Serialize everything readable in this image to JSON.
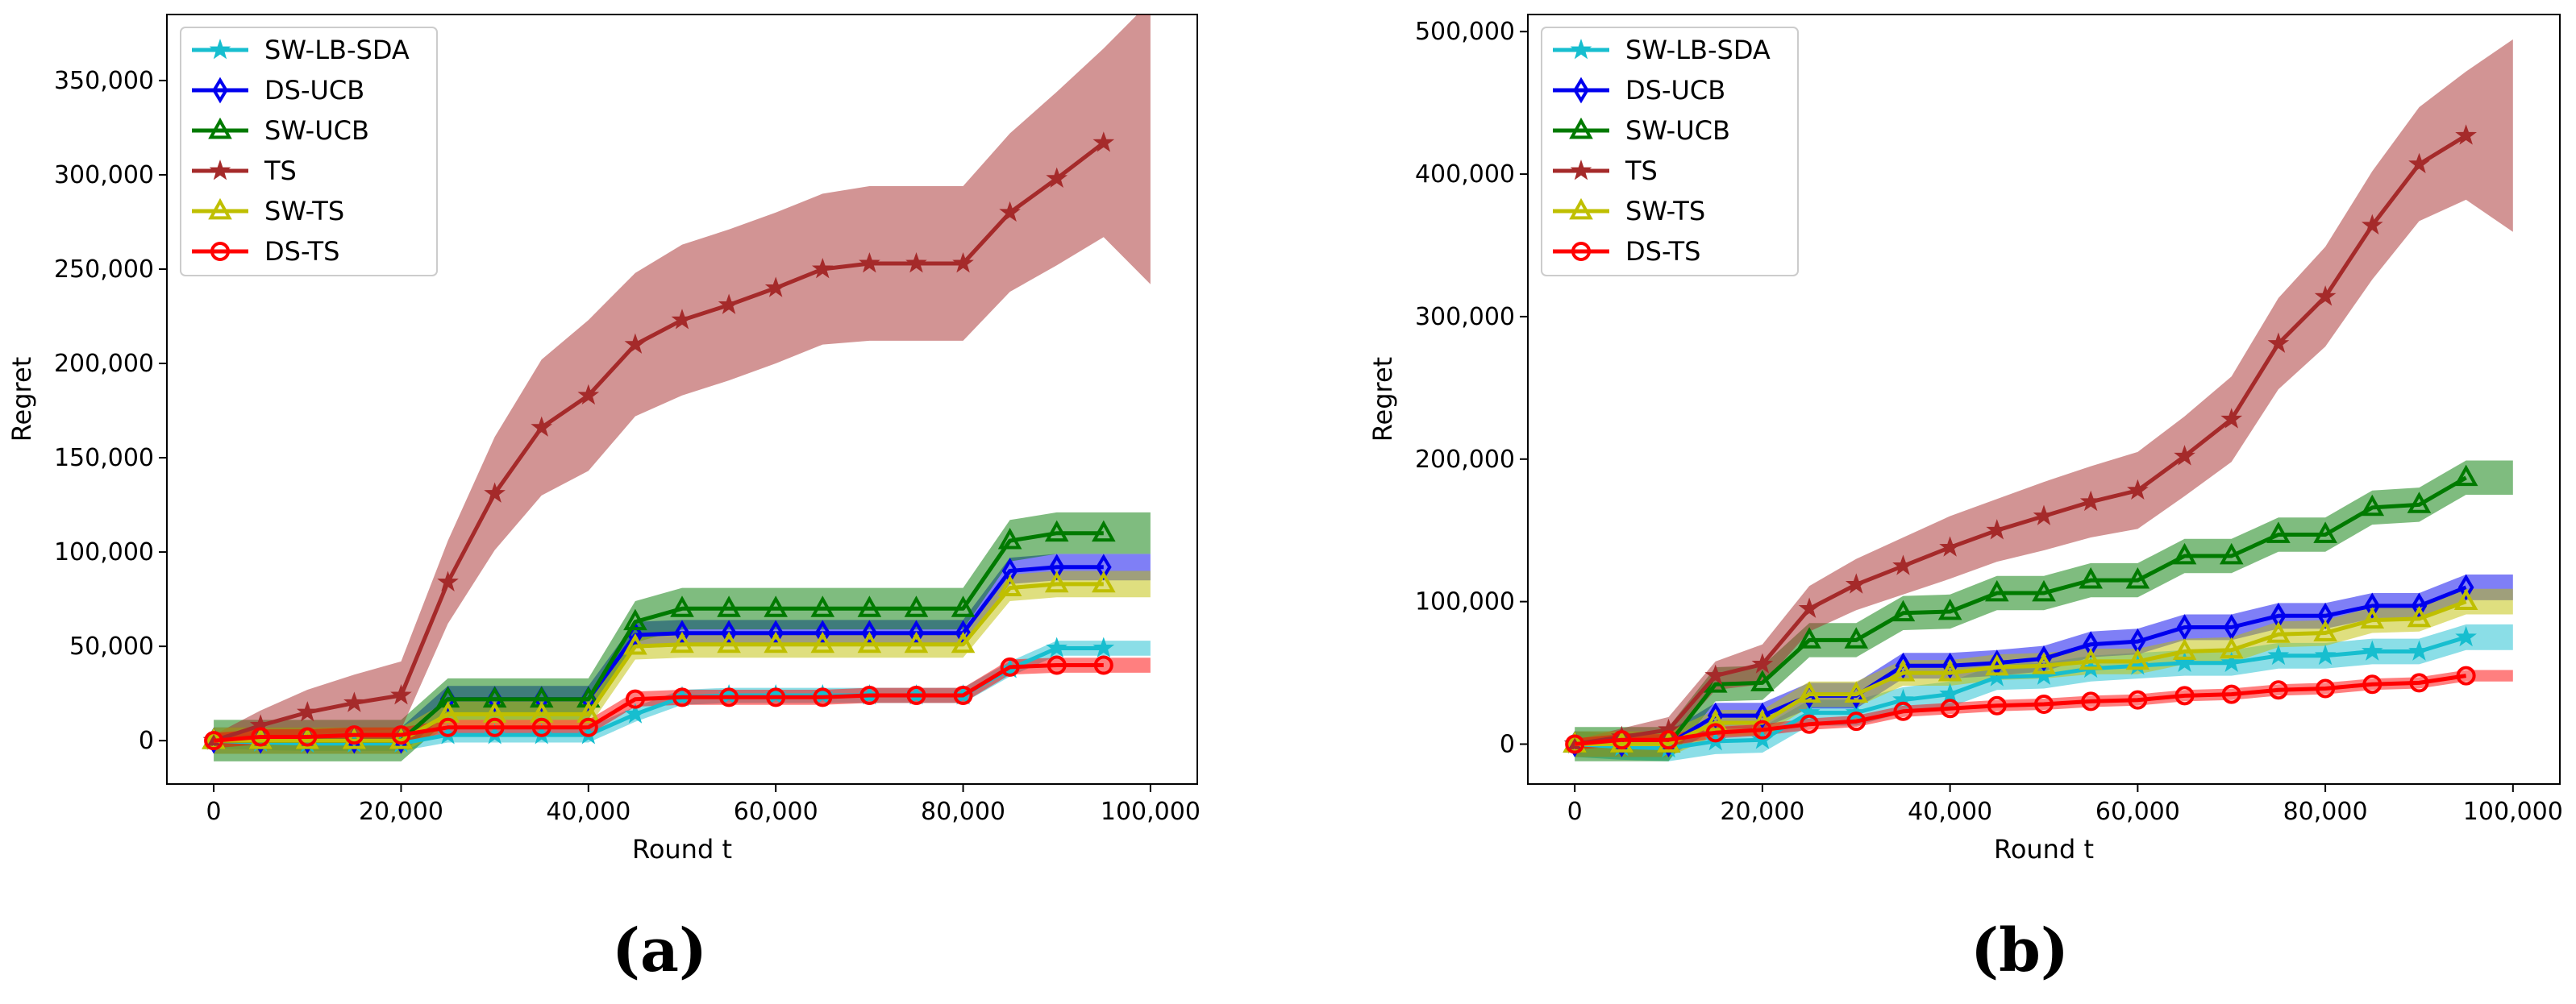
{
  "figure": {
    "panel_labels": [
      "(a)",
      "(b)"
    ]
  },
  "styles": {
    "SW-LB-SDA": {
      "color": "#17becf",
      "marker": "star"
    },
    "DS-UCB": {
      "color": "#0000ee",
      "marker": "diamond"
    },
    "SW-UCB": {
      "color": "#007a00",
      "marker": "triangle"
    },
    "TS": {
      "color": "#a52a2a",
      "marker": "star"
    },
    "SW-TS": {
      "color": "#bfbf00",
      "marker": "triangle"
    },
    "DS-TS": {
      "color": "#ff0000",
      "marker": "circle"
    }
  },
  "chart_data": [
    {
      "type": "line",
      "panel_label": "(a)",
      "xlabel": "Round t",
      "ylabel": "Regret",
      "xlim": [
        -5000,
        105000
      ],
      "ylim": [
        -23000,
        385000
      ],
      "xticks": [
        0,
        20000,
        40000,
        60000,
        80000,
        100000
      ],
      "xtick_labels": [
        "0",
        "20,000",
        "40,000",
        "60,000",
        "80,000",
        "100,000"
      ],
      "yticks": [
        0,
        50000,
        100000,
        150000,
        200000,
        250000,
        300000,
        350000
      ],
      "ytick_labels": [
        "0",
        "50,000",
        "100,000",
        "150,000",
        "200,000",
        "250,000",
        "300,000",
        "350,000"
      ],
      "legend_position": "top-left",
      "x": [
        0,
        5000,
        10000,
        15000,
        20000,
        25000,
        30000,
        35000,
        40000,
        45000,
        50000,
        55000,
        60000,
        65000,
        70000,
        75000,
        80000,
        85000,
        90000,
        95000
      ],
      "band_end_x": 100000,
      "series": [
        {
          "name": "SW-LB-SDA",
          "values": [
            0,
            -1000,
            -1500,
            -1500,
            -1500,
            3000,
            3000,
            3000,
            3000,
            14000,
            23000,
            24000,
            24000,
            24000,
            24000,
            24000,
            24000,
            38000,
            49000,
            49000
          ],
          "band": 4000
        },
        {
          "name": "DS-UCB",
          "values": [
            0,
            0,
            0,
            0,
            0,
            22000,
            22000,
            22000,
            22000,
            56000,
            57000,
            57000,
            57000,
            57000,
            57000,
            57000,
            57000,
            90000,
            92000,
            92000
          ],
          "band": 7000
        },
        {
          "name": "SW-UCB",
          "values": [
            0,
            0,
            0,
            0,
            0,
            22000,
            22000,
            22000,
            22000,
            63000,
            70000,
            70000,
            70000,
            70000,
            70000,
            70000,
            70000,
            106000,
            110000,
            110000
          ],
          "band": 11000
        },
        {
          "name": "TS",
          "values": [
            0,
            8000,
            15000,
            20000,
            24000,
            84000,
            131000,
            166000,
            183000,
            210000,
            223000,
            231000,
            240000,
            250000,
            253000,
            253000,
            253000,
            280000,
            298000,
            317000
          ],
          "band_width": [
            3000,
            8000,
            12000,
            15000,
            18000,
            22000,
            30000,
            36000,
            40000,
            38000,
            40000,
            40000,
            40000,
            40000,
            41000,
            41000,
            41000,
            42000,
            46000,
            50000
          ]
        },
        {
          "name": "SW-TS",
          "values": [
            0,
            0,
            0,
            0,
            0,
            14000,
            14000,
            14000,
            14000,
            50000,
            51000,
            51000,
            51000,
            51000,
            51000,
            51000,
            51000,
            81000,
            83000,
            83000
          ],
          "band": 7000
        },
        {
          "name": "DS-TS",
          "values": [
            0,
            2000,
            2000,
            3000,
            3000,
            7000,
            7000,
            7000,
            7000,
            22000,
            23000,
            23000,
            23000,
            23000,
            24000,
            24000,
            24000,
            39000,
            40000,
            40000
          ],
          "band": 4000
        }
      ]
    },
    {
      "type": "line",
      "panel_label": "(b)",
      "xlabel": "Round t",
      "ylabel": "Regret",
      "xlim": [
        -5000,
        105000
      ],
      "ylim": [
        -28000,
        512000
      ],
      "xticks": [
        0,
        20000,
        40000,
        60000,
        80000,
        100000
      ],
      "xtick_labels": [
        "0",
        "20,000",
        "40,000",
        "60,000",
        "80,000",
        "100,000"
      ],
      "yticks": [
        0,
        100000,
        200000,
        300000,
        400000,
        500000
      ],
      "ytick_labels": [
        "0",
        "100,000",
        "200,000",
        "300,000",
        "400,000",
        "500,000"
      ],
      "legend_position": "top-left",
      "x": [
        0,
        5000,
        10000,
        15000,
        20000,
        25000,
        30000,
        35000,
        40000,
        45000,
        50000,
        55000,
        60000,
        65000,
        70000,
        75000,
        80000,
        85000,
        90000,
        95000
      ],
      "band_end_x": 100000,
      "series": [
        {
          "name": "SW-LB-SDA",
          "values": [
            0,
            -2000,
            -3000,
            2000,
            3000,
            22000,
            22000,
            31000,
            35000,
            47000,
            48000,
            53000,
            55000,
            57000,
            57000,
            62000,
            62000,
            65000,
            65000,
            75000
          ],
          "band": 9000
        },
        {
          "name": "DS-UCB",
          "values": [
            0,
            0,
            0,
            20000,
            20000,
            34000,
            34000,
            55000,
            55000,
            57000,
            60000,
            70000,
            72000,
            82000,
            82000,
            90000,
            90000,
            97000,
            97000,
            110000
          ],
          "band": 9000
        },
        {
          "name": "SW-UCB",
          "values": [
            0,
            0,
            0,
            42000,
            43000,
            73000,
            73000,
            92000,
            93000,
            106000,
            106000,
            115000,
            115000,
            132000,
            132000,
            147000,
            147000,
            166000,
            168000,
            187000
          ],
          "band": 12000
        },
        {
          "name": "TS",
          "values": [
            0,
            5000,
            10000,
            48000,
            56000,
            95000,
            112000,
            125000,
            138000,
            150000,
            160000,
            170000,
            178000,
            202000,
            228000,
            281000,
            314000,
            364000,
            407000,
            427000
          ],
          "band_width": [
            3000,
            6000,
            9000,
            10000,
            14000,
            16000,
            18000,
            20000,
            22000,
            22000,
            24000,
            25000,
            27000,
            28000,
            30000,
            32000,
            35000,
            38000,
            40000,
            45000
          ]
        },
        {
          "name": "SW-TS",
          "values": [
            0,
            0,
            0,
            15000,
            15000,
            35000,
            35000,
            50000,
            50000,
            54000,
            55000,
            58000,
            58000,
            65000,
            66000,
            77000,
            78000,
            87000,
            88000,
            100000
          ],
          "band": 9000
        },
        {
          "name": "DS-TS",
          "values": [
            0,
            3000,
            3000,
            8000,
            10000,
            14000,
            16000,
            23000,
            25000,
            27000,
            28000,
            30000,
            31000,
            34000,
            35000,
            38000,
            39000,
            42000,
            43000,
            48000
          ],
          "band": 4000
        }
      ]
    }
  ]
}
